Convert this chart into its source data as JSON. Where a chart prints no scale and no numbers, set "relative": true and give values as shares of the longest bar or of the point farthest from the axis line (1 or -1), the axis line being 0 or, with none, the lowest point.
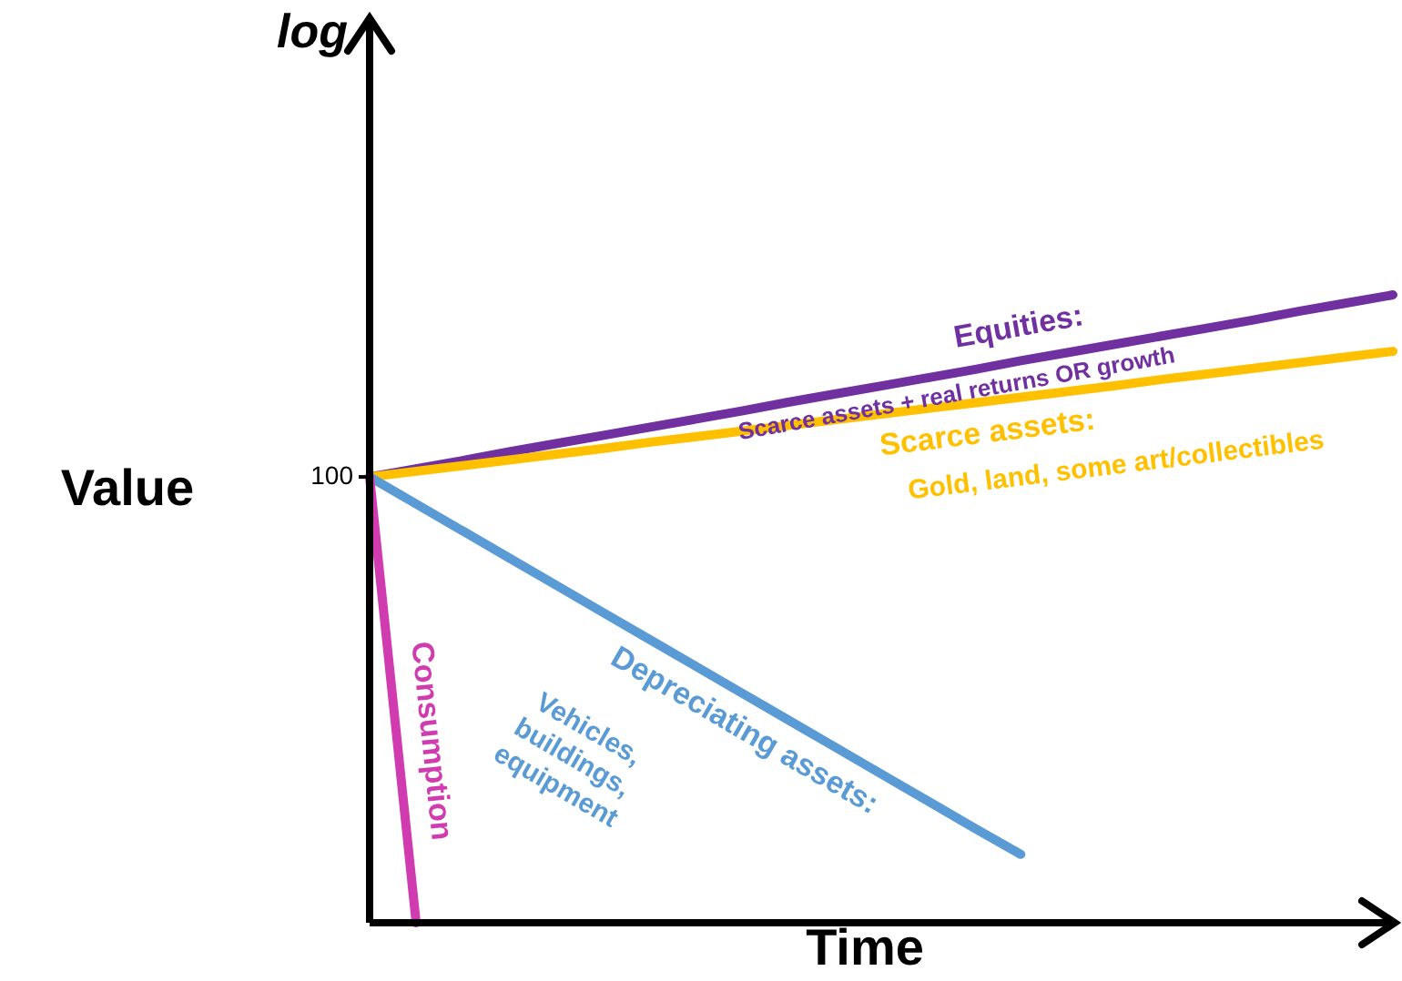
{
  "chart_data": {
    "type": "line",
    "relative": true,
    "xlabel": "Time",
    "ylabel": "Value",
    "legend": false,
    "categories": [
      null,
      null,
      null,
      null,
      null,
      null,
      null,
      null,
      null,
      null,
      null,
      null,
      null,
      null,
      null,
      null,
      null,
      null,
      null,
      null,
      null,
      null,
      null
    ],
    "series": [
      {
        "name": "Equities:",
        "color": "#7030a0",
        "values": [
          0.71,
          0.723,
          0.736,
          0.75,
          0.763,
          0.776,
          0.789,
          0.802,
          0.815,
          0.829,
          0.842,
          0.855,
          0.868,
          0.881,
          0.895,
          0.908,
          0.921,
          0.934,
          0.947,
          0.96,
          0.974,
          0.987,
          1.0
        ]
      },
      {
        "name": "Scarce assets:",
        "color": "#ffc000",
        "values": [
          0.71,
          0.719,
          0.728,
          0.737,
          0.746,
          0.755,
          0.765,
          0.774,
          0.783,
          0.792,
          0.801,
          0.81,
          0.819,
          0.828,
          0.837,
          0.846,
          0.855,
          0.865,
          0.874,
          0.883,
          0.892,
          0.901,
          0.91
        ]
      },
      {
        "name": "Depreciating assets:",
        "color": "#5b9bd5",
        "values": [
          0.71,
          0.667,
          0.624,
          0.581,
          0.538,
          0.495,
          0.452,
          0.409,
          0.366,
          0.323,
          0.28,
          0.237,
          0.194,
          0.151,
          0.109,
          null,
          null,
          null,
          null,
          null,
          null,
          null,
          null
        ]
      },
      {
        "name": "Consumption",
        "color": "#d03cb0",
        "values": [
          0.71,
          0,
          null,
          null,
          null,
          null,
          null,
          null,
          null,
          null,
          null,
          null,
          null,
          null,
          null,
          null,
          null,
          null,
          null,
          null,
          null,
          null,
          null
        ]
      }
    ],
    "annotations": [
      "log",
      "100",
      "Scarce assets + real returns OR growth",
      "Gold, land, some art/collectibles",
      "Vehicles,\nbuildings,\nequipment"
    ]
  }
}
